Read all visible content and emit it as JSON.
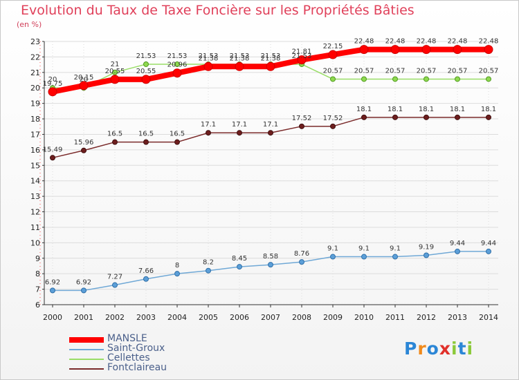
{
  "title": "Evolution du Taux de Taxe Foncière sur les Propriétés Bâties",
  "unit": "(en %)",
  "logo": [
    "P",
    "r",
    "o",
    "x",
    "i",
    "t",
    "i"
  ],
  "logo_colors": [
    "#2b86d6",
    "#f08a1c",
    "#2b86d6",
    "#e0302a",
    "#8bc93a",
    "#2b86d6",
    "#8bc93a"
  ],
  "colors": {
    "grid": "#dcdcdc",
    "axis": "#333333",
    "MANSLE": "#ff0000",
    "Saint-Groux": "#6fa8d6",
    "Cellettes": "#99dd66",
    "Fontclaireau": "#7a2a2a"
  },
  "chart_data": {
    "type": "line",
    "title": "Evolution du Taux de Taxe Foncière sur les Propriétés Bâties",
    "ylabel": "(en %)",
    "xlabel": "",
    "ylim": [
      6,
      23
    ],
    "yticks": [
      "6",
      "7",
      "8",
      "9",
      "10",
      "11",
      "12",
      "13",
      "14",
      "15",
      "16",
      "17",
      "18",
      "19",
      "20",
      "21",
      "22",
      "23"
    ],
    "categories": [
      "2000",
      "2001",
      "2002",
      "2003",
      "2004",
      "2005",
      "2006",
      "2007",
      "2008",
      "2009",
      "2010",
      "2011",
      "2012",
      "2013",
      "2014"
    ],
    "legend_position": "bottom-left",
    "series": [
      {
        "name": "MANSLE",
        "values": [
          19.75,
          20.15,
          20.55,
          20.55,
          20.96,
          21.38,
          21.38,
          21.38,
          21.81,
          22.15,
          22.48,
          22.48,
          22.48,
          22.48,
          22.48
        ],
        "labels": [
          "19.75",
          "20.15",
          "20.55",
          "20.55",
          "20.96",
          "21.38",
          "21.38",
          "21.38",
          "21.81",
          "22.15",
          "22.48",
          "22.48",
          "22.48",
          "22.48",
          "22.48"
        ]
      },
      {
        "name": "Saint-Groux",
        "values": [
          6.92,
          6.92,
          7.27,
          7.66,
          8,
          8.2,
          8.45,
          8.58,
          8.76,
          9.1,
          9.1,
          9.1,
          9.19,
          9.44,
          9.44
        ],
        "labels": [
          "6.92",
          "6.92",
          "7.27",
          "7.66",
          "8",
          "8.2",
          "8.45",
          "8.58",
          "8.76",
          "9.1",
          "9.1",
          "9.1",
          "9.19",
          "9.44",
          "9.44"
        ]
      },
      {
        "name": "Cellettes",
        "values": [
          20,
          20,
          21,
          21.53,
          21.53,
          21.53,
          21.53,
          21.53,
          21.53,
          20.57,
          20.57,
          20.57,
          20.57,
          20.57,
          20.57
        ],
        "labels": [
          "20",
          "20",
          "21",
          "21.53",
          "21.53",
          "21.53",
          "21.53",
          "21.53",
          "21.53",
          "20.57",
          "20.57",
          "20.57",
          "20.57",
          "20.57",
          "20.57"
        ]
      },
      {
        "name": "Fontclaireau",
        "values": [
          15.49,
          15.96,
          16.5,
          16.5,
          16.5,
          17.1,
          17.1,
          17.1,
          17.52,
          17.52,
          18.1,
          18.1,
          18.1,
          18.1,
          18.1
        ],
        "labels": [
          "15.49",
          "15.96",
          "16.5",
          "16.5",
          "16.5",
          "17.1",
          "17.1",
          "17.1",
          "17.52",
          "17.52",
          "18.1",
          "18.1",
          "18.1",
          "18.1",
          "18.1"
        ]
      }
    ]
  }
}
